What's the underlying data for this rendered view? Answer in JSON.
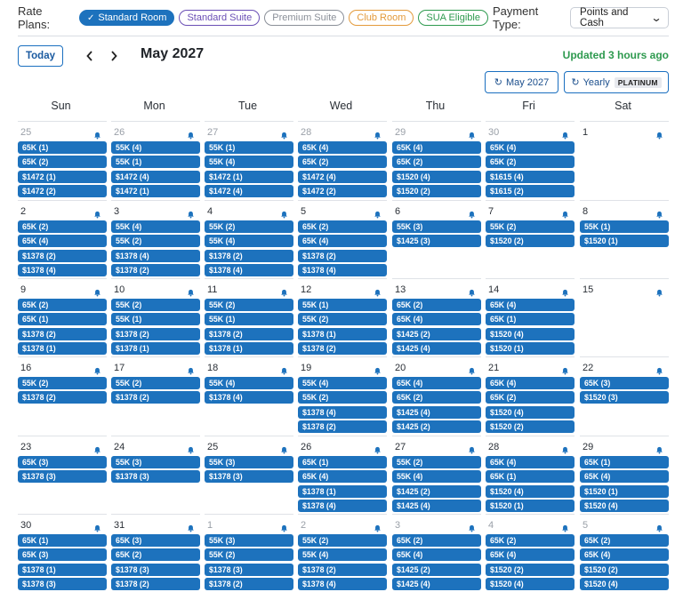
{
  "toolbar": {
    "rate_plans_label": "Rate Plans:",
    "chips": [
      {
        "label": "Standard Room",
        "selected": true,
        "color": "#1d72bd"
      },
      {
        "label": "Standard Suite",
        "selected": false,
        "color": "#6a4fb5"
      },
      {
        "label": "Premium Suite",
        "selected": false,
        "color": "#8a8f98"
      },
      {
        "label": "Club Room",
        "selected": false,
        "color": "#e39a3b"
      },
      {
        "label": "SUA Eligible",
        "selected": false,
        "color": "#2e9a4f"
      }
    ],
    "payment_type_label": "Payment Type:",
    "payment_type_value": "Points and Cash"
  },
  "header": {
    "today_label": "Today",
    "month_title": "May 2027",
    "updated_text": "Updated 3 hours ago",
    "month_button_label": "May 2027",
    "yearly_button_label": "Yearly",
    "platinum_badge": "PLATINUM"
  },
  "weekdays": [
    "Sun",
    "Mon",
    "Tue",
    "Wed",
    "Thu",
    "Fri",
    "Sat"
  ],
  "weeks": [
    [
      {
        "day": "25",
        "other": true,
        "rates": [
          "65K (1)",
          "65K (2)",
          "$1472 (1)",
          "$1472 (2)"
        ]
      },
      {
        "day": "26",
        "other": true,
        "rates": [
          "55K (4)",
          "55K (1)",
          "$1472 (4)",
          "$1472 (1)"
        ]
      },
      {
        "day": "27",
        "other": true,
        "rates": [
          "55K (1)",
          "55K (4)",
          "$1472 (1)",
          "$1472 (4)"
        ]
      },
      {
        "day": "28",
        "other": true,
        "rates": [
          "65K (4)",
          "65K (2)",
          "$1472 (4)",
          "$1472 (2)"
        ]
      },
      {
        "day": "29",
        "other": true,
        "rates": [
          "65K (4)",
          "65K (2)",
          "$1520 (4)",
          "$1520 (2)"
        ]
      },
      {
        "day": "30",
        "other": true,
        "rates": [
          "65K (4)",
          "65K (2)",
          "$1615 (4)",
          "$1615 (2)"
        ]
      },
      {
        "day": "1",
        "other": false,
        "rates": []
      }
    ],
    [
      {
        "day": "2",
        "other": false,
        "rates": [
          "65K (2)",
          "65K (4)",
          "$1378 (2)",
          "$1378 (4)"
        ]
      },
      {
        "day": "3",
        "other": false,
        "rates": [
          "55K (4)",
          "55K (2)",
          "$1378 (4)",
          "$1378 (2)"
        ]
      },
      {
        "day": "4",
        "other": false,
        "rates": [
          "55K (2)",
          "55K (4)",
          "$1378 (2)",
          "$1378 (4)"
        ]
      },
      {
        "day": "5",
        "other": false,
        "rates": [
          "65K (2)",
          "65K (4)",
          "$1378 (2)",
          "$1378 (4)"
        ]
      },
      {
        "day": "6",
        "other": false,
        "rates": [
          "55K (3)",
          "$1425 (3)"
        ]
      },
      {
        "day": "7",
        "other": false,
        "rates": [
          "55K (2)",
          "$1520 (2)"
        ]
      },
      {
        "day": "8",
        "other": false,
        "rates": [
          "55K (1)",
          "$1520 (1)"
        ]
      }
    ],
    [
      {
        "day": "9",
        "other": false,
        "rates": [
          "65K (2)",
          "65K (1)",
          "$1378 (2)",
          "$1378 (1)"
        ]
      },
      {
        "day": "10",
        "other": false,
        "rates": [
          "55K (2)",
          "55K (1)",
          "$1378 (2)",
          "$1378 (1)"
        ]
      },
      {
        "day": "11",
        "other": false,
        "rates": [
          "55K (2)",
          "55K (1)",
          "$1378 (2)",
          "$1378 (1)"
        ]
      },
      {
        "day": "12",
        "other": false,
        "rates": [
          "55K (1)",
          "55K (2)",
          "$1378 (1)",
          "$1378 (2)"
        ]
      },
      {
        "day": "13",
        "other": false,
        "rates": [
          "65K (2)",
          "65K (4)",
          "$1425 (2)",
          "$1425 (4)"
        ]
      },
      {
        "day": "14",
        "other": false,
        "rates": [
          "65K (4)",
          "65K (1)",
          "$1520 (4)",
          "$1520 (1)"
        ]
      },
      {
        "day": "15",
        "other": false,
        "rates": []
      }
    ],
    [
      {
        "day": "16",
        "other": false,
        "rates": [
          "55K (2)",
          "$1378 (2)"
        ]
      },
      {
        "day": "17",
        "other": false,
        "rates": [
          "55K (2)",
          "$1378 (2)"
        ]
      },
      {
        "day": "18",
        "other": false,
        "rates": [
          "55K (4)",
          "$1378 (4)"
        ]
      },
      {
        "day": "19",
        "other": false,
        "rates": [
          "55K (4)",
          "55K (2)",
          "$1378 (4)",
          "$1378 (2)"
        ]
      },
      {
        "day": "20",
        "other": false,
        "rates": [
          "65K (4)",
          "65K (2)",
          "$1425 (4)",
          "$1425 (2)"
        ]
      },
      {
        "day": "21",
        "other": false,
        "rates": [
          "65K (4)",
          "65K (2)",
          "$1520 (4)",
          "$1520 (2)"
        ]
      },
      {
        "day": "22",
        "other": false,
        "rates": [
          "65K (3)",
          "$1520 (3)"
        ]
      }
    ],
    [
      {
        "day": "23",
        "other": false,
        "rates": [
          "65K (3)",
          "$1378 (3)"
        ]
      },
      {
        "day": "24",
        "other": false,
        "rates": [
          "55K (3)",
          "$1378 (3)"
        ]
      },
      {
        "day": "25",
        "other": false,
        "rates": [
          "55K (3)",
          "$1378 (3)"
        ]
      },
      {
        "day": "26",
        "other": false,
        "rates": [
          "65K (1)",
          "65K (4)",
          "$1378 (1)",
          "$1378 (4)"
        ]
      },
      {
        "day": "27",
        "other": false,
        "rates": [
          "55K (2)",
          "55K (4)",
          "$1425 (2)",
          "$1425 (4)"
        ]
      },
      {
        "day": "28",
        "other": false,
        "rates": [
          "65K (4)",
          "65K (1)",
          "$1520 (4)",
          "$1520 (1)"
        ]
      },
      {
        "day": "29",
        "other": false,
        "rates": [
          "65K (1)",
          "65K (4)",
          "$1520 (1)",
          "$1520 (4)"
        ]
      }
    ],
    [
      {
        "day": "30",
        "other": false,
        "rates": [
          "65K (1)",
          "65K (3)",
          "$1378 (1)",
          "$1378 (3)"
        ]
      },
      {
        "day": "31",
        "other": false,
        "rates": [
          "65K (3)",
          "65K (2)",
          "$1378 (3)",
          "$1378 (2)"
        ]
      },
      {
        "day": "1",
        "other": true,
        "rates": [
          "55K (3)",
          "55K (2)",
          "$1378 (3)",
          "$1378 (2)"
        ]
      },
      {
        "day": "2",
        "other": true,
        "rates": [
          "55K (2)",
          "55K (4)",
          "$1378 (2)",
          "$1378 (4)"
        ]
      },
      {
        "day": "3",
        "other": true,
        "rates": [
          "65K (2)",
          "65K (4)",
          "$1425 (2)",
          "$1425 (4)"
        ]
      },
      {
        "day": "4",
        "other": true,
        "rates": [
          "65K (2)",
          "65K (4)",
          "$1520 (2)",
          "$1520 (4)"
        ]
      },
      {
        "day": "5",
        "other": true,
        "rates": [
          "65K (2)",
          "65K (4)",
          "$1520 (2)",
          "$1520 (4)"
        ]
      }
    ]
  ],
  "colors": {
    "accent": "#1d72bd",
    "updated": "#2e9a4f"
  },
  "icons": {
    "bell": "bell-icon",
    "check": "check-icon",
    "refresh": "refresh-icon",
    "chevron": "chevron-down-icon"
  }
}
